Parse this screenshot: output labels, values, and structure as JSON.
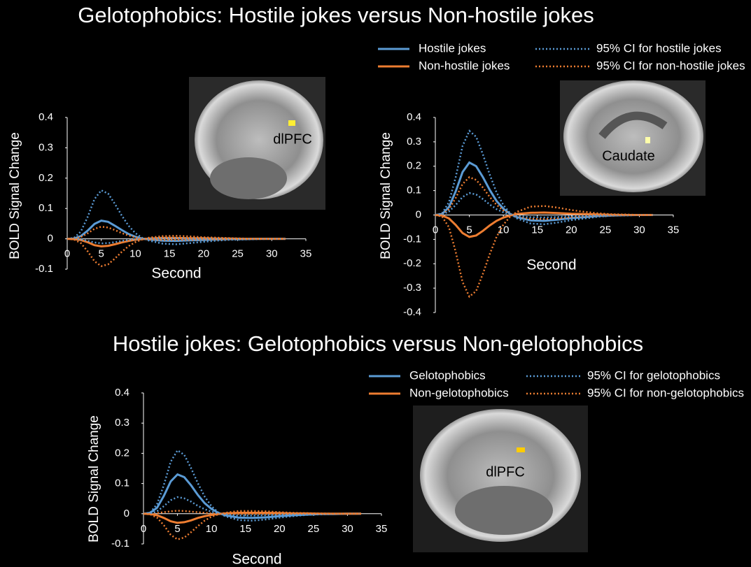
{
  "chart_data": [
    {
      "type": "line",
      "title": "Gelotophobics: Hostile jokes versus Non-hostile jokes",
      "xlabel": "Second",
      "ylabel": "BOLD Signal Change",
      "annotation": "dlPFC",
      "x": [
        0,
        1,
        2,
        3,
        4,
        5,
        6,
        7,
        8,
        9,
        10,
        11,
        12,
        14,
        16,
        18,
        20,
        22,
        24,
        26,
        28,
        30,
        32
      ],
      "xlim": [
        0,
        35
      ],
      "xticks": [
        0,
        5,
        10,
        15,
        20,
        25,
        30,
        35
      ],
      "ylim": [
        -0.1,
        0.4
      ],
      "yticks": [
        0.4,
        0.3,
        0.2,
        0.1,
        0,
        -0.1
      ],
      "series": [
        {
          "name": "Hostile jokes",
          "color": "#5b9bd5",
          "style": "solid",
          "values": [
            0,
            0.001,
            0.009,
            0.027,
            0.049,
            0.06,
            0.056,
            0.043,
            0.029,
            0.016,
            0.007,
            0.001,
            -0.002,
            -0.006,
            -0.007,
            -0.005,
            -0.004,
            -0.002,
            -0.001,
            -0.001,
            0,
            0,
            0
          ]
        },
        {
          "name": "Non-hostile jokes",
          "color": "#ed7d31",
          "style": "solid",
          "values": [
            0,
            -0.001,
            -0.004,
            -0.011,
            -0.021,
            -0.025,
            -0.023,
            -0.018,
            -0.012,
            -0.007,
            -0.003,
            -0.001,
            0.001,
            0.003,
            0.003,
            0.002,
            0.002,
            0.001,
            0.001,
            0,
            0,
            0,
            0
          ]
        },
        {
          "name": "95% CI for hostile jokes",
          "color": "#5b9bd5",
          "style": "dotted",
          "values": [
            0,
            0.003,
            0.024,
            0.072,
            0.131,
            0.16,
            0.149,
            0.115,
            0.077,
            0.043,
            0.019,
            0.003,
            -0.006,
            -0.016,
            -0.018,
            -0.014,
            -0.01,
            -0.006,
            -0.003,
            -0.002,
            -0.001,
            0,
            0
          ]
        },
        {
          "name": "95% CI for non-hostile jokes",
          "color": "#ed7d31",
          "style": "dotted",
          "values": [
            0,
            0.001,
            0.006,
            0.018,
            0.033,
            0.04,
            0.037,
            0.029,
            0.019,
            0.011,
            0.005,
            0.001,
            -0.002,
            -0.004,
            -0.004,
            -0.004,
            -0.002,
            -0.002,
            -0.001,
            0,
            0,
            0,
            0
          ]
        },
        {
          "color": "#5b9bd5",
          "style": "dotted",
          "values": [
            0,
            0,
            -0.002,
            -0.007,
            -0.012,
            -0.015,
            -0.014,
            -0.011,
            -0.007,
            -0.004,
            -0.002,
            0,
            0.001,
            0.002,
            0.002,
            0.001,
            0.001,
            0.001,
            0,
            0,
            0,
            0,
            0
          ]
        },
        {
          "color": "#ed7d31",
          "style": "dotted",
          "values": [
            0,
            -0.002,
            -0.014,
            -0.041,
            -0.074,
            -0.09,
            -0.084,
            -0.065,
            -0.043,
            -0.024,
            -0.011,
            -0.002,
            0.004,
            0.009,
            0.01,
            0.008,
            0.005,
            0.004,
            0.002,
            0.001,
            0,
            0,
            0
          ]
        }
      ]
    },
    {
      "type": "line",
      "xlabel": "Second",
      "ylabel": "BOLD Signal Change",
      "annotation": "Caudate",
      "x": [
        0,
        1,
        2,
        3,
        4,
        5,
        6,
        7,
        8,
        9,
        10,
        11,
        12,
        14,
        16,
        18,
        20,
        22,
        24,
        26,
        28,
        30,
        32
      ],
      "xlim": [
        0,
        35
      ],
      "xticks": [
        0,
        5,
        10,
        15,
        20,
        25,
        30,
        35
      ],
      "ylim": [
        -0.4,
        0.4
      ],
      "yticks": [
        0.4,
        0.3,
        0.2,
        0.1,
        0,
        -0.1,
        -0.2,
        -0.3,
        -0.4
      ],
      "series": [
        {
          "color": "#5b9bd5",
          "style": "solid",
          "values": [
            0,
            0.004,
            0.032,
            0.097,
            0.176,
            0.215,
            0.2,
            0.155,
            0.103,
            0.058,
            0.026,
            0.004,
            -0.009,
            -0.022,
            -0.024,
            -0.019,
            -0.013,
            -0.009,
            -0.004,
            -0.002,
            -0.001,
            0,
            0
          ]
        },
        {
          "color": "#ed7d31",
          "style": "solid",
          "values": [
            0,
            -0.002,
            -0.014,
            -0.041,
            -0.074,
            -0.09,
            -0.084,
            -0.065,
            -0.043,
            -0.024,
            -0.011,
            -0.002,
            0.004,
            0.009,
            0.01,
            0.008,
            0.005,
            0.004,
            0.002,
            0.001,
            0,
            0,
            0
          ]
        },
        {
          "color": "#5b9bd5",
          "style": "dotted",
          "values": [
            0,
            0.007,
            0.052,
            0.155,
            0.283,
            0.345,
            0.321,
            0.248,
            0.166,
            0.093,
            0.041,
            0.007,
            -0.014,
            -0.035,
            -0.038,
            -0.031,
            -0.021,
            -0.014,
            -0.007,
            -0.003,
            -0.002,
            0,
            0
          ]
        },
        {
          "color": "#ed7d31",
          "style": "dotted",
          "values": [
            0,
            0.003,
            0.023,
            0.07,
            0.127,
            0.155,
            0.144,
            0.112,
            0.074,
            0.042,
            0.019,
            0.003,
            -0.006,
            -0.016,
            -0.017,
            -0.014,
            -0.009,
            -0.006,
            -0.003,
            -0.002,
            -0.001,
            0,
            0
          ]
        },
        {
          "color": "#5b9bd5",
          "style": "dotted",
          "values": [
            0,
            0.002,
            0.014,
            0.041,
            0.074,
            0.09,
            0.084,
            0.065,
            0.043,
            0.024,
            0.011,
            0.002,
            -0.004,
            -0.009,
            -0.01,
            -0.008,
            -0.005,
            -0.004,
            -0.002,
            -0.001,
            0,
            0,
            0
          ]
        },
        {
          "color": "#ed7d31",
          "style": "dotted",
          "values": [
            0,
            -0.007,
            -0.05,
            -0.151,
            -0.275,
            -0.335,
            -0.312,
            -0.241,
            -0.161,
            -0.09,
            -0.04,
            -0.007,
            0.013,
            0.034,
            0.037,
            0.03,
            0.02,
            0.013,
            0.007,
            0.003,
            0.002,
            0,
            0
          ]
        }
      ]
    },
    {
      "type": "line",
      "title": "Hostile jokes: Gelotophobics versus Non-gelotophobics",
      "xlabel": "Second",
      "ylabel": "BOLD Signal Change",
      "annotation": "dlPFC",
      "x": [
        0,
        1,
        2,
        3,
        4,
        5,
        6,
        7,
        8,
        9,
        10,
        11,
        12,
        14,
        16,
        18,
        20,
        22,
        24,
        26,
        28,
        30,
        32
      ],
      "xlim": [
        0,
        35
      ],
      "xticks": [
        0,
        5,
        10,
        15,
        20,
        25,
        30,
        35
      ],
      "ylim": [
        -0.1,
        0.4
      ],
      "yticks": [
        0.4,
        0.3,
        0.2,
        0.1,
        0,
        -0.1
      ],
      "series": [
        {
          "name": "Gelotophobics",
          "color": "#5b9bd5",
          "style": "solid",
          "values": [
            0,
            0.003,
            0.02,
            0.059,
            0.107,
            0.13,
            0.121,
            0.094,
            0.062,
            0.035,
            0.016,
            0.003,
            -0.005,
            -0.013,
            -0.014,
            -0.012,
            -0.008,
            -0.005,
            -0.003,
            -0.001,
            -0.001,
            0,
            0
          ]
        },
        {
          "name": "Non-gelotophobics",
          "color": "#ed7d31",
          "style": "solid",
          "values": [
            0,
            -0.001,
            -0.005,
            -0.014,
            -0.025,
            -0.03,
            -0.028,
            -0.022,
            -0.014,
            -0.008,
            -0.004,
            -0.001,
            0.001,
            0.003,
            0.003,
            0.003,
            0.002,
            0.001,
            0.001,
            0,
            0,
            0,
            0
          ]
        },
        {
          "name": "95% CI for gelotophobics",
          "color": "#5b9bd5",
          "style": "dotted",
          "values": [
            0,
            0.004,
            0.032,
            0.095,
            0.172,
            0.21,
            0.195,
            0.151,
            0.101,
            0.057,
            0.025,
            0.004,
            -0.008,
            -0.021,
            -0.023,
            -0.019,
            -0.013,
            -0.008,
            -0.004,
            -0.002,
            -0.001,
            0,
            0
          ]
        },
        {
          "name": "95% CI for non-gelotophobics",
          "color": "#ed7d31",
          "style": "dotted",
          "values": [
            0,
            0,
            0.002,
            0.005,
            0.008,
            0.01,
            0.009,
            0.007,
            0.005,
            0.003,
            0.001,
            0,
            0,
            -0.001,
            -0.001,
            -0.001,
            -0.001,
            0,
            0,
            0,
            0,
            0,
            0
          ]
        },
        {
          "color": "#5b9bd5",
          "style": "dotted",
          "values": [
            0,
            0.001,
            0.008,
            0.025,
            0.045,
            0.055,
            0.051,
            0.04,
            0.026,
            0.015,
            0.007,
            0.001,
            -0.002,
            -0.006,
            -0.006,
            -0.005,
            -0.003,
            -0.002,
            -0.001,
            -0.001,
            0,
            0,
            0
          ]
        },
        {
          "color": "#ed7d31",
          "style": "dotted",
          "values": [
            0,
            -0.002,
            -0.013,
            -0.038,
            -0.07,
            -0.085,
            -0.079,
            -0.061,
            -0.041,
            -0.023,
            -0.01,
            -0.002,
            0.003,
            0.009,
            0.009,
            0.008,
            0.005,
            0.003,
            0.002,
            0.001,
            0,
            0,
            0
          ]
        }
      ]
    }
  ]
}
